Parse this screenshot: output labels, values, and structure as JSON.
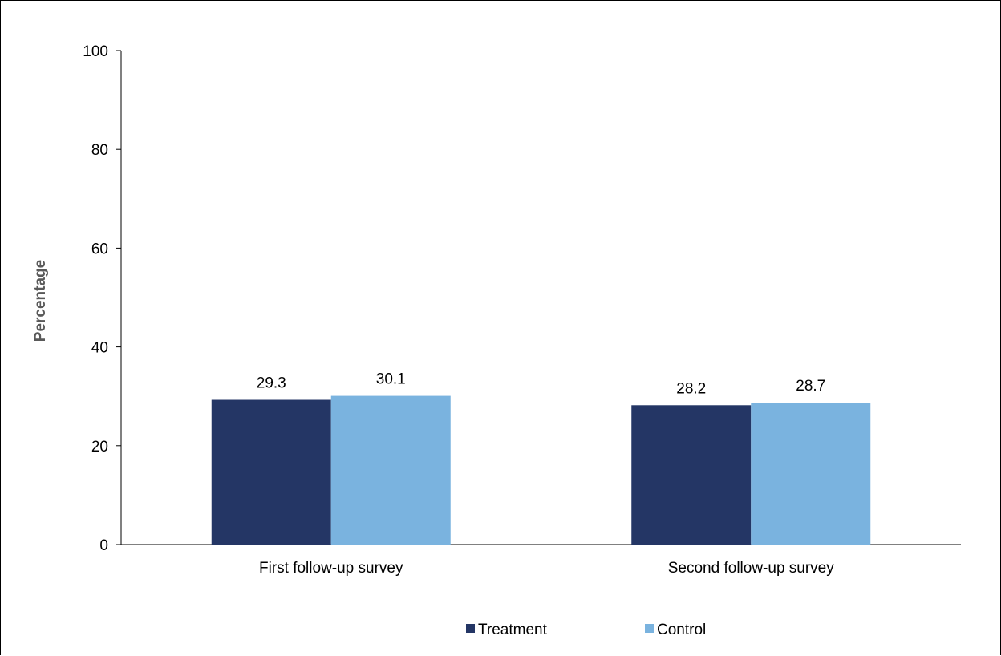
{
  "chart_data": {
    "type": "bar",
    "title": "",
    "xlabel": "",
    "ylabel": "Percentage",
    "ylim": [
      0,
      100
    ],
    "yticks": [
      0,
      20,
      40,
      60,
      80,
      100
    ],
    "grid": false,
    "legend_position": "bottom",
    "categories": [
      "First follow-up survey",
      "Second follow-up survey"
    ],
    "series": [
      {
        "name": "Treatment",
        "color": "#243665",
        "values": [
          29.3,
          28.2
        ],
        "labels": [
          "29.3",
          "28.2"
        ]
      },
      {
        "name": "Control",
        "color": "#7AB3DF",
        "values": [
          30.1,
          28.7
        ],
        "labels": [
          "30.1",
          "28.7"
        ]
      }
    ]
  }
}
